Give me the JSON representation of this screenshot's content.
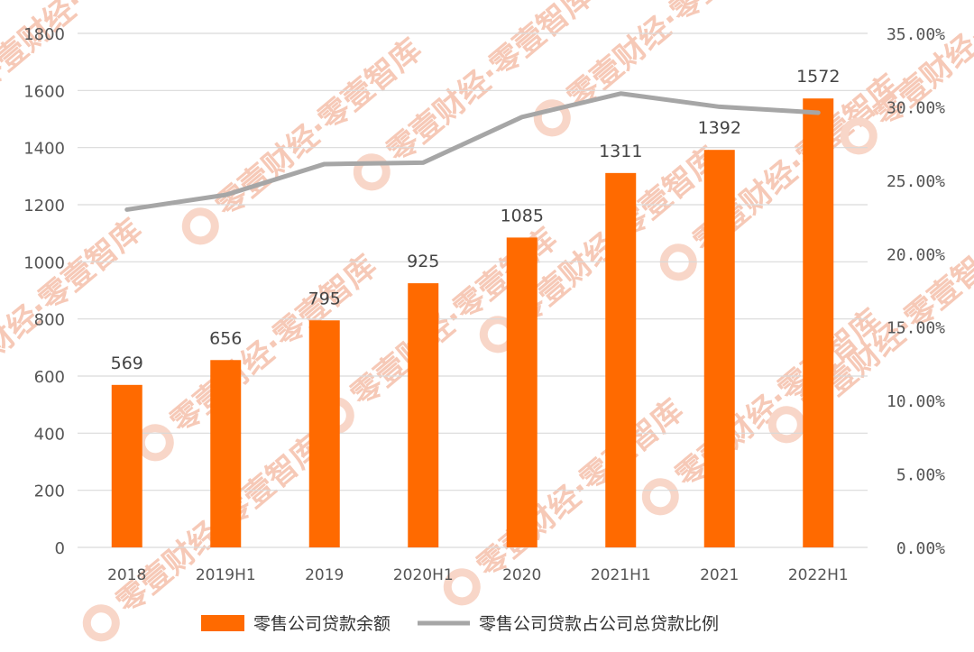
{
  "chart_data": {
    "type": "bar",
    "categories": [
      "2018",
      "2019H1",
      "2019",
      "2020H1",
      "2020",
      "2021H1",
      "2021",
      "2022H1"
    ],
    "series": [
      {
        "name": "零售公司贷款余额",
        "type": "bar",
        "axis": "left",
        "values": [
          569,
          656,
          795,
          925,
          1085,
          1311,
          1392,
          1572
        ],
        "data_labels": [
          "569",
          "656",
          "795",
          "925",
          "1085",
          "1311",
          "1392",
          "1572"
        ]
      },
      {
        "name": "零售公司贷款占公司总贷款比例",
        "type": "line",
        "axis": "right",
        "values": [
          0.23,
          0.24,
          0.261,
          0.262,
          0.293,
          0.309,
          0.3,
          0.296
        ]
      }
    ],
    "y_left": {
      "ylim": [
        0,
        1800
      ],
      "ticks": [
        "0",
        "200",
        "400",
        "600",
        "800",
        "1000",
        "1200",
        "1400",
        "1600",
        "1800"
      ]
    },
    "y_right": {
      "ylim": [
        0,
        0.35
      ],
      "ticks": [
        "0.00%",
        "5.00%",
        "10.00%",
        "15.00%",
        "20.00%",
        "25.00%",
        "30.00%",
        "35.00%"
      ]
    },
    "grid": true,
    "legend_position": "bottom",
    "colors": {
      "bar": "#ff6a00",
      "line": "#a6a6a6",
      "grid": "#d9d9d9"
    }
  },
  "watermark": {
    "text": "零壹财经·零壹智库",
    "color": "#f6c9b7"
  }
}
